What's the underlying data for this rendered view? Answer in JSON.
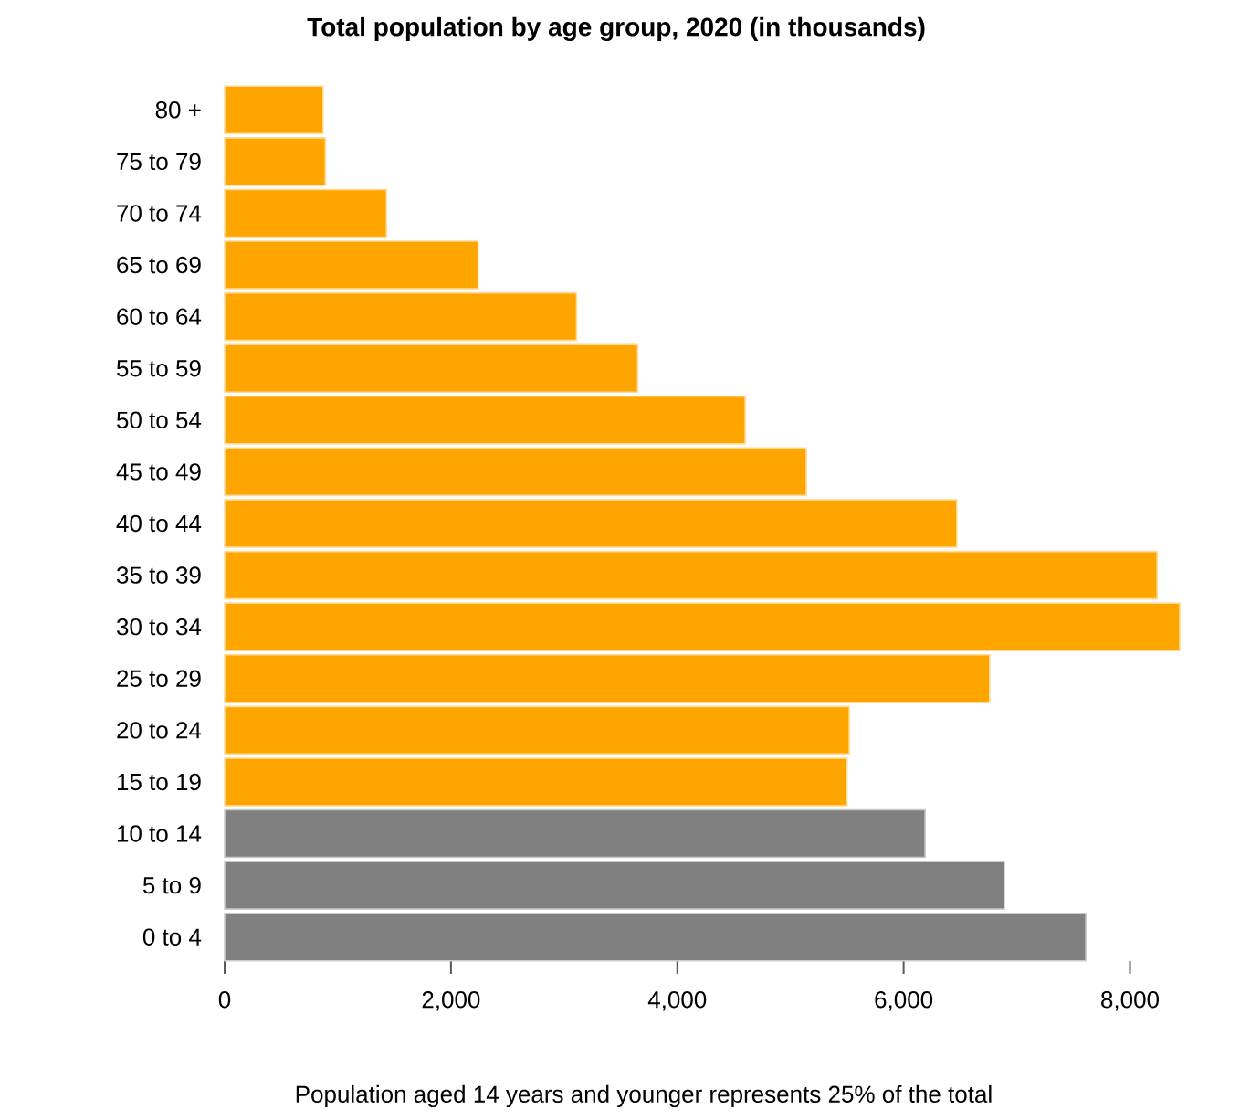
{
  "chart_data": {
    "type": "bar",
    "orientation": "horizontal",
    "title": "Total population by age group, 2020 (in thousands)",
    "categories": [
      "80 +",
      "75 to 79",
      "70 to 74",
      "65 to 69",
      "60 to 64",
      "55 to 59",
      "50 to 54",
      "45 to 49",
      "40 to 44",
      "35 to 39",
      "30 to 34",
      "25 to 29",
      "20 to 24",
      "15 to 19",
      "10 to 14",
      "5 to 9",
      "0 to 4"
    ],
    "values": [
      870,
      890,
      1430,
      2240,
      3110,
      3650,
      4600,
      5140,
      6470,
      8240,
      8440,
      6760,
      5520,
      5500,
      6190,
      6890,
      7610
    ],
    "colors": [
      "#ffa500",
      "#ffa500",
      "#ffa500",
      "#ffa500",
      "#ffa500",
      "#ffa500",
      "#ffa500",
      "#ffa500",
      "#ffa500",
      "#ffa500",
      "#ffa500",
      "#ffa500",
      "#ffa500",
      "#ffa500",
      "#808080",
      "#808080",
      "#808080"
    ],
    "xlim": [
      0,
      8440
    ],
    "xticks": [
      {
        "value": 0,
        "label": "0"
      },
      {
        "value": 2000,
        "label": "2,000"
      },
      {
        "value": 4000,
        "label": "4,000"
      },
      {
        "value": 6000,
        "label": "6,000"
      },
      {
        "value": 8000,
        "label": "8,000"
      }
    ],
    "grid": false,
    "annotations": [
      "Population aged 14 years and younger represents 25% of the total"
    ]
  }
}
